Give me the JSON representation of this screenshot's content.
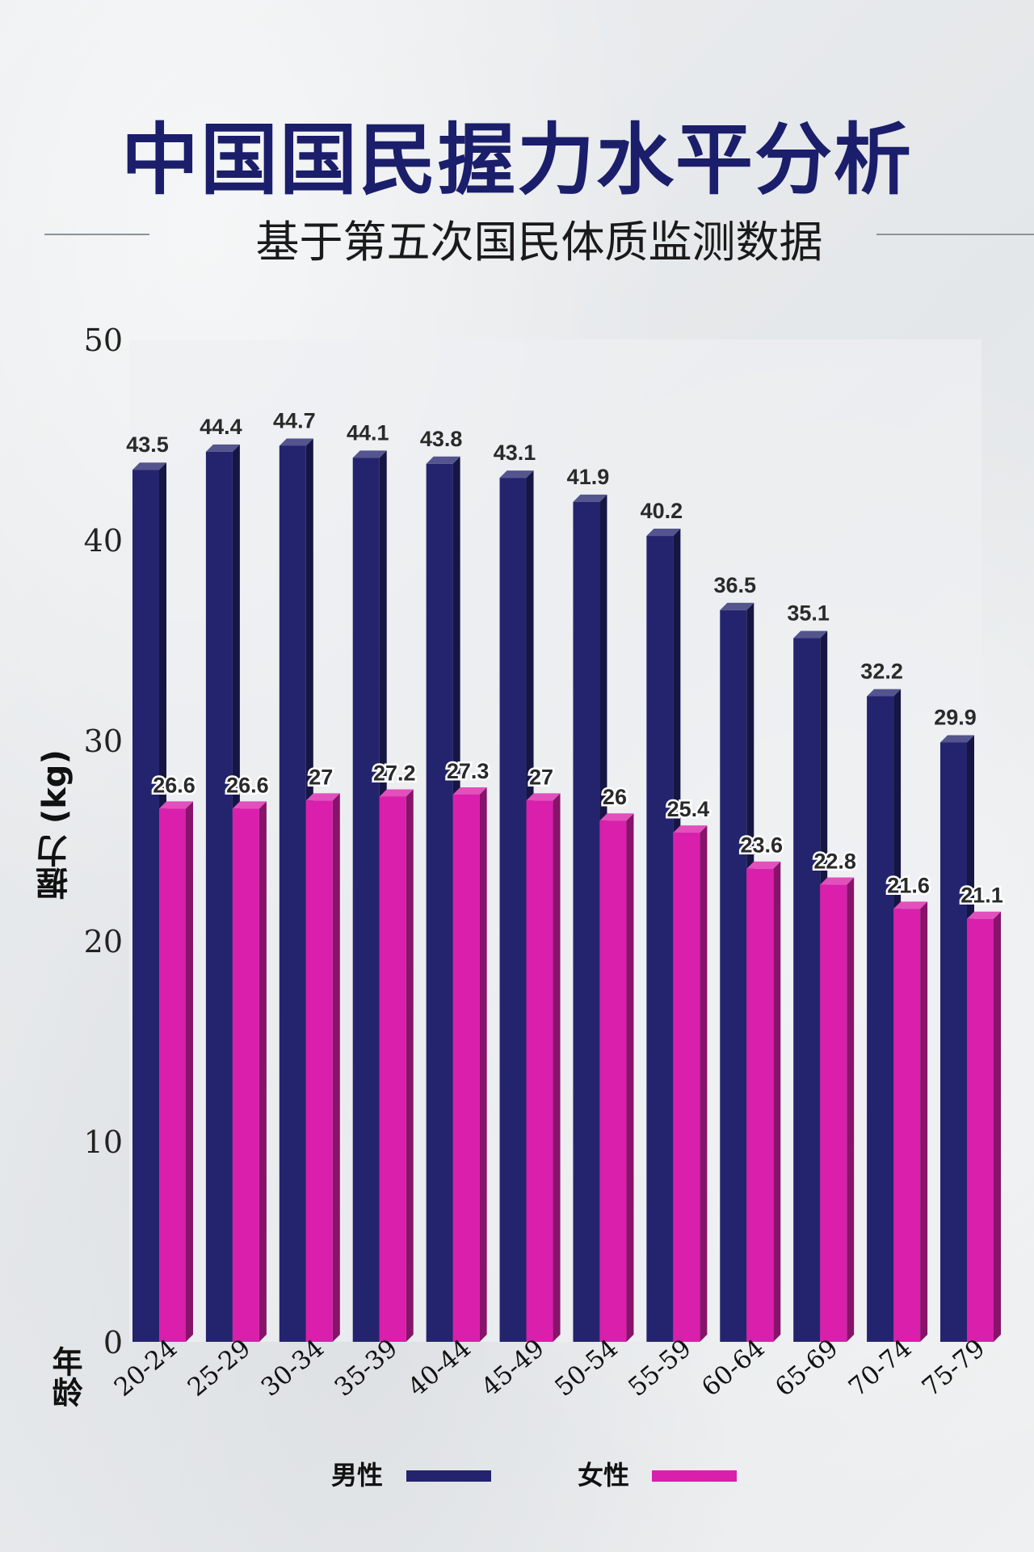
{
  "title": "中国国民握力水平分析",
  "subtitle": "基于第五次国民体质监测数据",
  "legend": [
    {
      "label": "男性",
      "color": "#24246e"
    },
    {
      "label": "女性",
      "color": "#d91fab"
    }
  ],
  "chart_data": {
    "type": "bar",
    "ylabel": "握力 (kg)",
    "xlabel": "年龄",
    "ylim": [
      0,
      50
    ],
    "yticks": [
      0,
      10,
      20,
      30,
      40,
      50
    ],
    "grid": false,
    "legend_position": "bottom",
    "categories": [
      "20-24",
      "25-29",
      "30-34",
      "35-39",
      "40-44",
      "45-49",
      "50-54",
      "55-59",
      "60-64",
      "65-69",
      "70-74",
      "75-79"
    ],
    "series": [
      {
        "name": "男性",
        "color": "#24246e",
        "values": [
          43.5,
          44.4,
          44.7,
          44.1,
          43.8,
          43.1,
          41.9,
          40.2,
          36.5,
          35.1,
          32.2,
          29.9
        ]
      },
      {
        "name": "女性",
        "color": "#d91fab",
        "values": [
          26.6,
          26.6,
          27,
          27.2,
          27.3,
          27,
          26,
          25.4,
          23.6,
          22.8,
          21.6,
          21.1
        ]
      }
    ]
  }
}
